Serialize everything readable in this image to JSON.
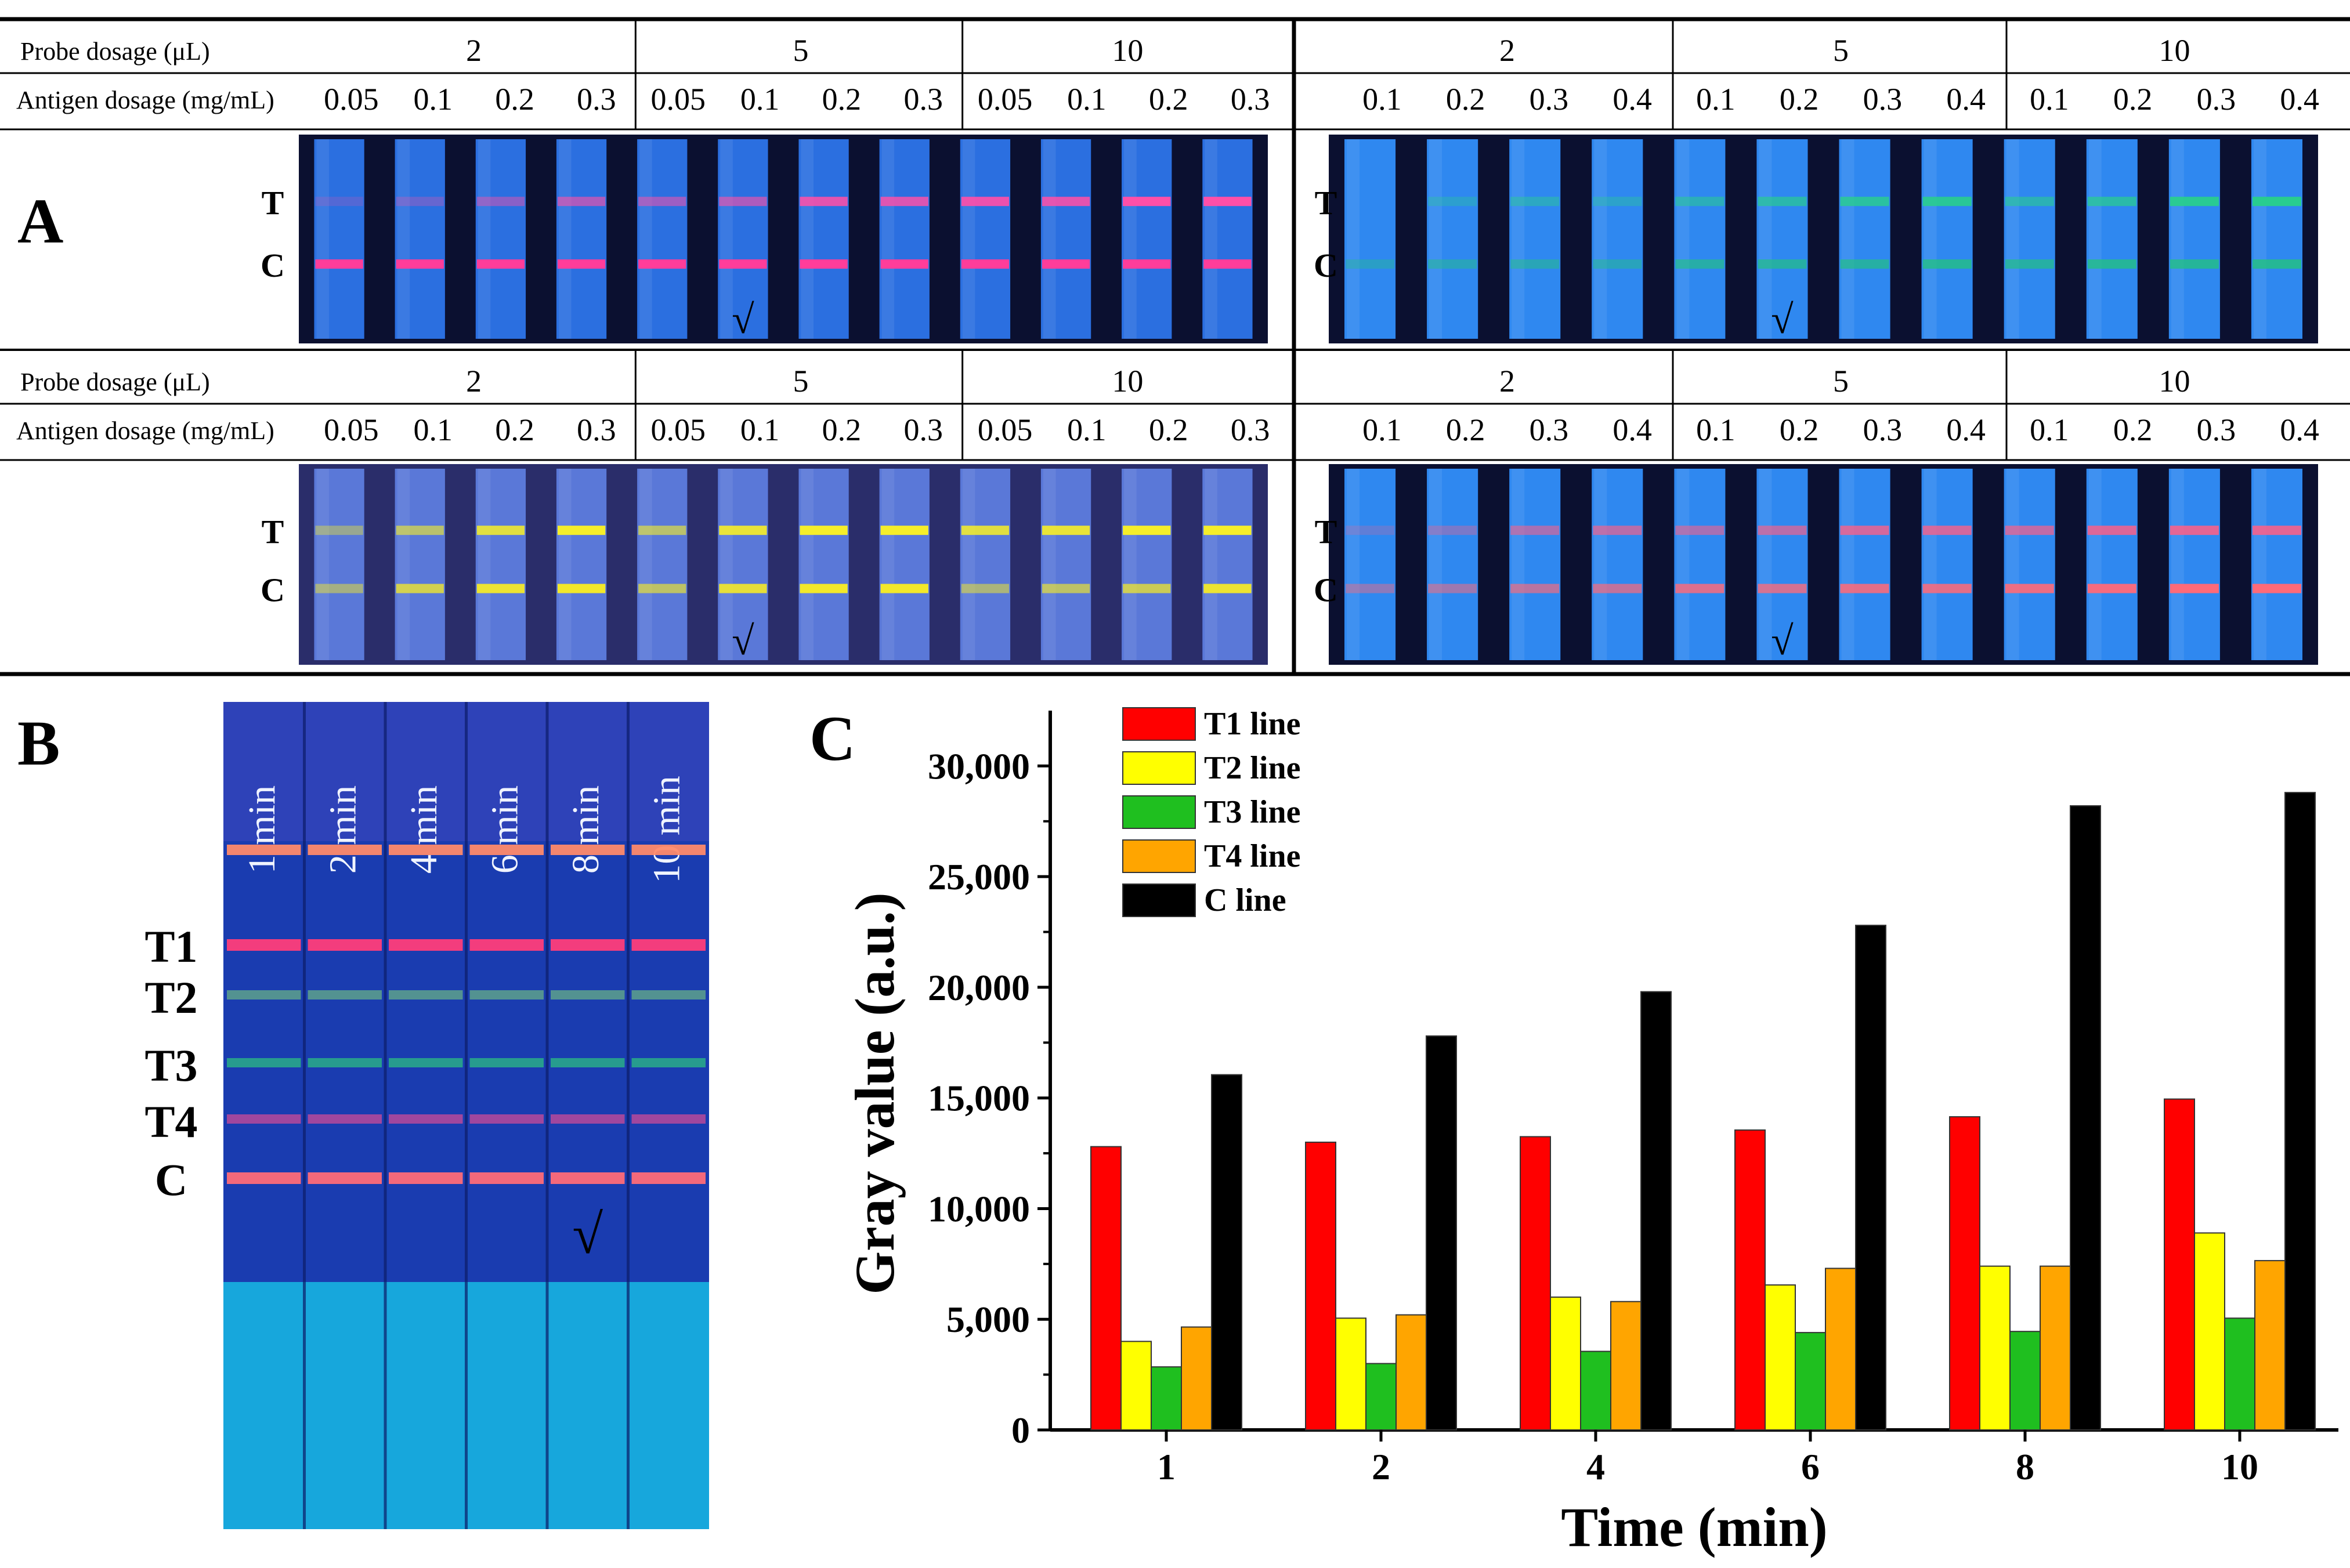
{
  "panel_labels": {
    "a": "A",
    "b": "B",
    "c": "C"
  },
  "panel_a": {
    "probe_label": "Probe dosage (μL)",
    "antigen_label": "Antigen dosage (mg/mL)",
    "line_t": "T",
    "line_c": "C",
    "check_mark": "√",
    "blocks": [
      {
        "probes": [
          "2",
          "5",
          "10"
        ],
        "antigens": [
          "0.05",
          "0.1",
          "0.2",
          "0.3",
          "0.05",
          "0.1",
          "0.2",
          "0.3",
          "0.05",
          "0.1",
          "0.2",
          "0.3"
        ],
        "t_color": "#ff4fa8",
        "c_color": "#ff3d9a",
        "t_intensity": [
          0.05,
          0.15,
          0.35,
          0.55,
          0.45,
          0.55,
          0.85,
          0.8,
          0.9,
          0.85,
          1.0,
          1.0
        ],
        "c_intensity": [
          1,
          1,
          1,
          1,
          1,
          1,
          1,
          1,
          1,
          1,
          1,
          1
        ],
        "check_index": 5
      },
      {
        "probes": [
          "2",
          "5",
          "10"
        ],
        "antigens": [
          "0.1",
          "0.2",
          "0.3",
          "0.4",
          "0.1",
          "0.2",
          "0.3",
          "0.4",
          "0.1",
          "0.2",
          "0.3",
          "0.4"
        ],
        "t_color": "#28d08a",
        "c_color": "#22c47c",
        "t_intensity": [
          0.0,
          0.2,
          0.35,
          0.25,
          0.45,
          0.6,
          0.75,
          0.85,
          0.5,
          0.65,
          0.9,
          0.95
        ],
        "c_intensity": [
          0.25,
          0.35,
          0.4,
          0.35,
          0.55,
          0.6,
          0.6,
          0.7,
          0.6,
          0.7,
          0.7,
          0.75
        ],
        "check_index": 5
      },
      {
        "probes": [
          "2",
          "5",
          "10"
        ],
        "antigens": [
          "0.05",
          "0.1",
          "0.2",
          "0.3",
          "0.05",
          "0.1",
          "0.2",
          "0.3",
          "0.05",
          "0.1",
          "0.2",
          "0.3"
        ],
        "t_color": "#f5ee2a",
        "c_color": "#f2e82a",
        "t_intensity": [
          0.3,
          0.55,
          0.85,
          1.0,
          0.55,
          0.9,
          1.0,
          1.0,
          0.85,
          0.9,
          1.0,
          1.0
        ],
        "c_intensity": [
          0.4,
          0.75,
          0.95,
          1.0,
          0.6,
          0.9,
          1.0,
          1.0,
          0.45,
          0.6,
          0.7,
          0.95
        ],
        "check_index": 5
      },
      {
        "probes": [
          "2",
          "5",
          "10"
        ],
        "antigens": [
          "0.1",
          "0.2",
          "0.3",
          "0.4",
          "0.1",
          "0.2",
          "0.3",
          "0.4",
          "0.1",
          "0.2",
          "0.3",
          "0.4"
        ],
        "t_color": "#ff5f86",
        "c_color": "#ff6a78",
        "t_intensity": [
          0.1,
          0.25,
          0.5,
          0.6,
          0.5,
          0.6,
          0.75,
          0.75,
          0.65,
          0.8,
          0.85,
          0.85
        ],
        "c_intensity": [
          0.35,
          0.45,
          0.6,
          0.65,
          0.8,
          0.75,
          0.85,
          0.85,
          0.9,
          0.95,
          1.0,
          1.0
        ],
        "check_index": 5
      }
    ]
  },
  "panel_b": {
    "times": [
      "1 min",
      "2 min",
      "4 min",
      "6 min",
      "8 min",
      "10 min"
    ],
    "line_labels": [
      "T1",
      "T2",
      "T3",
      "T4",
      "C"
    ],
    "check_mark": "√",
    "check_index": 4,
    "top_line_color": "#ff8a6a",
    "line_colors": [
      "#ff3d7a",
      "#62a88a",
      "#2bb486",
      "#c24a9a",
      "#ff6c78"
    ]
  },
  "chart_data": {
    "type": "bar",
    "title": "",
    "xlabel": "Time (min)",
    "ylabel": "Gray value (a.u.)",
    "categories": [
      "1",
      "2",
      "4",
      "6",
      "8",
      "10"
    ],
    "ylim": [
      0,
      32500
    ],
    "yticks": [
      0,
      5000,
      10000,
      15000,
      20000,
      25000,
      30000
    ],
    "ytick_labels": [
      "0",
      "5,000",
      "10,000",
      "15,000",
      "20,000",
      "25,000",
      "30,000"
    ],
    "legend_position": "top-left",
    "series": [
      {
        "name": "T1 line",
        "color": "#ff0000",
        "values": [
          12800,
          13000,
          13250,
          13550,
          14150,
          14950
        ]
      },
      {
        "name": "T2 line",
        "color": "#ffff00",
        "values": [
          4000,
          5050,
          6000,
          6550,
          7400,
          8900
        ]
      },
      {
        "name": "T3 line",
        "color": "#1fbf1f",
        "values": [
          2850,
          3000,
          3550,
          4400,
          4450,
          5050
        ]
      },
      {
        "name": "T4 line",
        "color": "#ffa500",
        "values": [
          4650,
          5200,
          5800,
          7300,
          7400,
          7650
        ]
      },
      {
        "name": "C  line",
        "color": "#000000",
        "values": [
          16050,
          17800,
          19800,
          22800,
          28200,
          28800
        ]
      }
    ]
  }
}
